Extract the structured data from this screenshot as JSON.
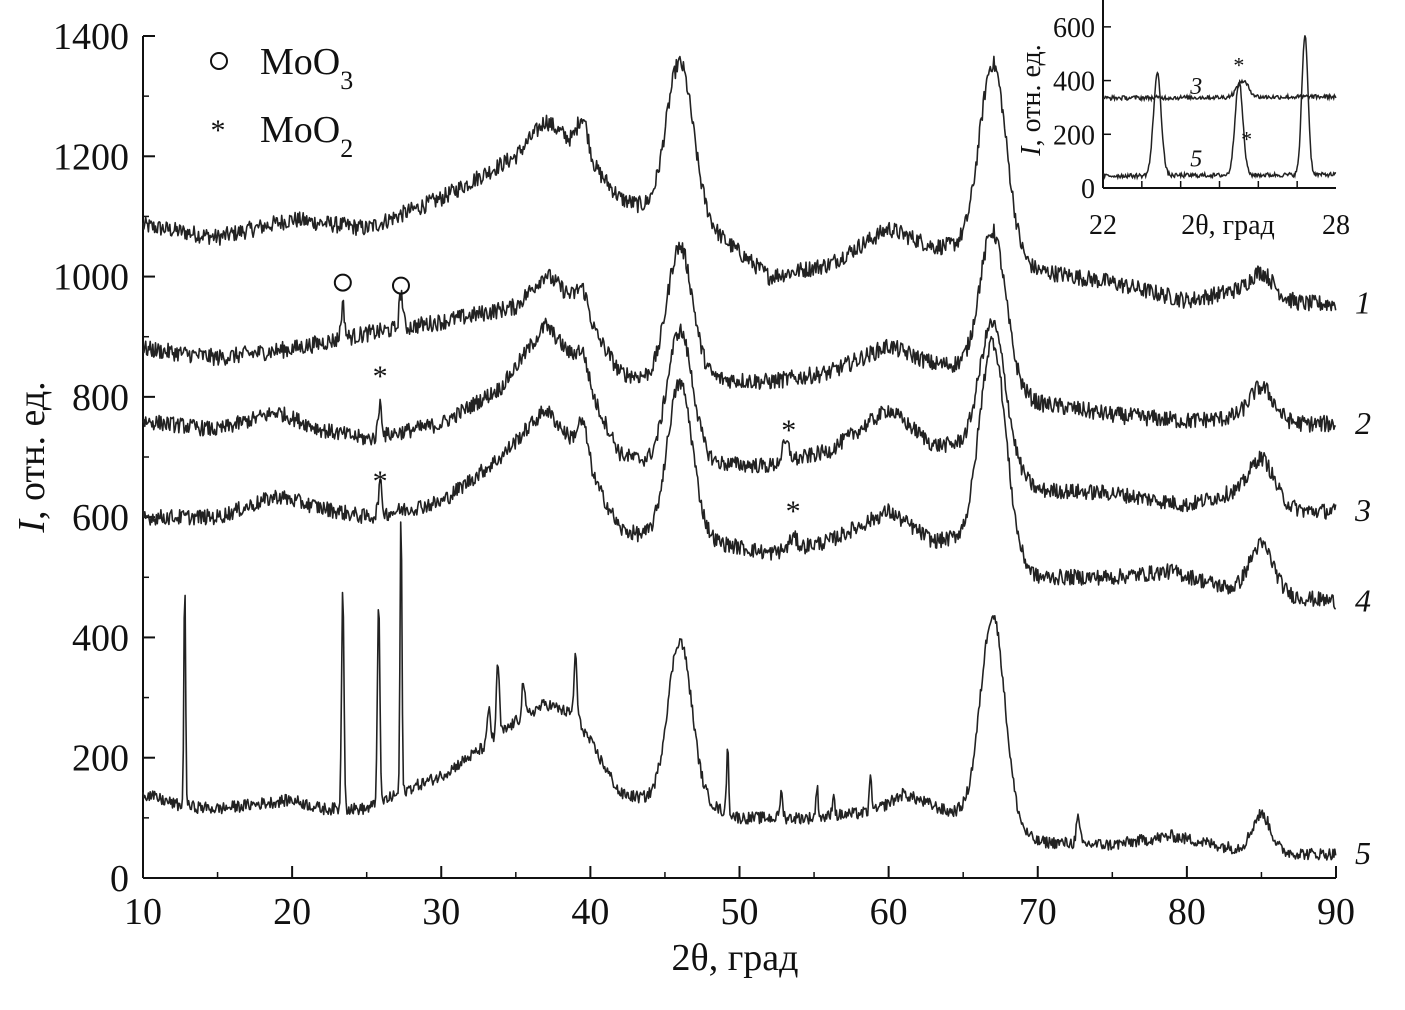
{
  "chart_data": [
    {
      "type": "line",
      "title": "",
      "xlabel": "2θ, град",
      "ylabel_italic": "I",
      "ylabel_rest": ", отн. ед.",
      "xlim": [
        10,
        90
      ],
      "ylim": [
        0,
        1400
      ],
      "xticks": [
        "10",
        "20",
        "30",
        "40",
        "50",
        "60",
        "70",
        "80",
        "90"
      ],
      "yticks": [
        "0",
        "200",
        "400",
        "600",
        "800",
        "1000",
        "1200",
        "1400"
      ],
      "grid": false,
      "legend_position": "top-left",
      "legend": [
        {
          "symbol": "○",
          "label": "MoO",
          "sub": "3"
        },
        {
          "symbol": "*",
          "label": "MoO",
          "sub": "2"
        }
      ],
      "phase_markers": [
        {
          "symbol": "○",
          "x": 23.4,
          "y": 990,
          "series": "1"
        },
        {
          "symbol": "○",
          "x": 27.3,
          "y": 985,
          "series": "1"
        },
        {
          "symbol": "*",
          "x": 25.9,
          "y": 835,
          "series": "2"
        },
        {
          "symbol": "*",
          "x": 25.9,
          "y": 660,
          "series": "3"
        },
        {
          "symbol": "*",
          "x": 53.3,
          "y": 745,
          "series": "3"
        },
        {
          "symbol": "*",
          "x": 53.6,
          "y": 610,
          "series": "4"
        }
      ],
      "series": [
        {
          "name": "1",
          "base": [
            [
              10,
              1085
            ],
            [
              15,
              1065
            ],
            [
              20,
              1095
            ],
            [
              25,
              1080
            ],
            [
              30,
              1130
            ],
            [
              35,
              1200
            ],
            [
              37,
              1260
            ],
            [
              39,
              1220
            ],
            [
              42,
              1130
            ],
            [
              44,
              1110
            ],
            [
              48,
              1080
            ],
            [
              52,
              1000
            ],
            [
              56,
              1020
            ],
            [
              60,
              1080
            ],
            [
              63,
              1050
            ],
            [
              65,
              1050
            ],
            [
              70,
              1010
            ],
            [
              75,
              990
            ],
            [
              80,
              960
            ],
            [
              83,
              975
            ],
            [
              88,
              955
            ],
            [
              90,
              955
            ]
          ],
          "peaks": [
            [
              39.5,
              60,
              0.35
            ],
            [
              46,
              260,
              0.9
            ],
            [
              67,
              320,
              0.9
            ],
            [
              85,
              40,
              0.8
            ]
          ]
        },
        {
          "name": "2",
          "base": [
            [
              10,
              880
            ],
            [
              15,
              865
            ],
            [
              20,
              880
            ],
            [
              25,
              905
            ],
            [
              30,
              925
            ],
            [
              35,
              950
            ],
            [
              37,
              1005
            ],
            [
              39,
              960
            ],
            [
              42,
              840
            ],
            [
              44,
              830
            ],
            [
              48,
              830
            ],
            [
              52,
              825
            ],
            [
              56,
              840
            ],
            [
              60,
              885
            ],
            [
              63,
              855
            ],
            [
              66,
              850
            ],
            [
              70,
              790
            ],
            [
              75,
              770
            ],
            [
              80,
              760
            ],
            [
              83,
              765
            ],
            [
              88,
              755
            ],
            [
              90,
              755
            ]
          ],
          "peaks": [
            [
              23.4,
              55,
              0.12
            ],
            [
              27.3,
              60,
              0.12
            ],
            [
              39.5,
              40,
              0.35
            ],
            [
              46,
              220,
              0.85
            ],
            [
              67,
              240,
              0.85
            ],
            [
              85,
              55,
              0.8
            ]
          ]
        },
        {
          "name": "3",
          "base": [
            [
              10,
              760
            ],
            [
              15,
              745
            ],
            [
              19,
              775
            ],
            [
              22,
              745
            ],
            [
              25,
              730
            ],
            [
              30,
              755
            ],
            [
              34,
              815
            ],
            [
              37,
              920
            ],
            [
              39,
              860
            ],
            [
              42,
              705
            ],
            [
              44,
              690
            ],
            [
              48,
              690
            ],
            [
              52,
              685
            ],
            [
              56,
              710
            ],
            [
              60,
              780
            ],
            [
              63,
              720
            ],
            [
              66,
              720
            ],
            [
              70,
              645
            ],
            [
              75,
              640
            ],
            [
              80,
              620
            ],
            [
              83,
              640
            ],
            [
              88,
              610
            ],
            [
              90,
              610
            ]
          ],
          "peaks": [
            [
              25.9,
              55,
              0.12
            ],
            [
              39.5,
              40,
              0.35
            ],
            [
              46,
              220,
              0.85
            ],
            [
              53.1,
              30,
              0.25
            ],
            [
              67,
              220,
              0.85
            ],
            [
              85,
              70,
              0.8
            ]
          ]
        },
        {
          "name": "4",
          "base": [
            [
              10,
              600
            ],
            [
              15,
              600
            ],
            [
              19,
              635
            ],
            [
              22,
              615
            ],
            [
              25,
              600
            ],
            [
              30,
              625
            ],
            [
              34,
              700
            ],
            [
              37,
              780
            ],
            [
              39,
              720
            ],
            [
              42,
              580
            ],
            [
              44,
              565
            ],
            [
              48,
              560
            ],
            [
              52,
              540
            ],
            [
              56,
              560
            ],
            [
              60,
              610
            ],
            [
              63,
              560
            ],
            [
              66,
              570
            ],
            [
              70,
              500
            ],
            [
              75,
              500
            ],
            [
              79,
              510
            ],
            [
              83,
              480
            ],
            [
              88,
              465
            ],
            [
              90,
              460
            ]
          ],
          "peaks": [
            [
              25.9,
              50,
              0.12
            ],
            [
              39.5,
              60,
              0.35
            ],
            [
              46,
              260,
              0.85
            ],
            [
              53.6,
              18,
              0.25
            ],
            [
              67,
              340,
              0.85
            ],
            [
              85,
              80,
              0.8
            ]
          ]
        },
        {
          "name": "5",
          "base": [
            [
              10,
              140
            ],
            [
              12.5,
              120
            ],
            [
              15,
              115
            ],
            [
              20,
              130
            ],
            [
              22,
              115
            ],
            [
              25,
              115
            ],
            [
              28,
              150
            ],
            [
              30,
              170
            ],
            [
              33,
              220
            ],
            [
              35,
              260
            ],
            [
              37,
              290
            ],
            [
              39,
              270
            ],
            [
              42,
              140
            ],
            [
              44,
              130
            ],
            [
              48,
              120
            ],
            [
              50,
              100
            ],
            [
              55,
              100
            ],
            [
              59,
              110
            ],
            [
              61,
              140
            ],
            [
              64,
              110
            ],
            [
              66,
              110
            ],
            [
              70,
              60
            ],
            [
              75,
              55
            ],
            [
              79,
              70
            ],
            [
              83,
              50
            ],
            [
              88,
              40
            ],
            [
              90,
              40
            ]
          ],
          "peaks": [
            [
              12.8,
              380,
              0.06
            ],
            [
              23.4,
              370,
              0.08
            ],
            [
              25.8,
              340,
              0.08
            ],
            [
              27.3,
              480,
              0.06
            ],
            [
              33.2,
              60,
              0.1
            ],
            [
              33.8,
              120,
              0.1
            ],
            [
              35.5,
              60,
              0.1
            ],
            [
              39.0,
              100,
              0.1
            ],
            [
              46,
              270,
              0.8
            ],
            [
              49.2,
              110,
              0.07
            ],
            [
              52.8,
              40,
              0.1
            ],
            [
              55.2,
              50,
              0.08
            ],
            [
              56.3,
              40,
              0.08
            ],
            [
              58.8,
              60,
              0.08
            ],
            [
              67,
              340,
              0.8
            ],
            [
              72.7,
              40,
              0.12
            ],
            [
              85,
              60,
              0.6
            ]
          ]
        }
      ]
    },
    {
      "type": "line",
      "title": "",
      "xlabel": "2θ, град",
      "ylabel_italic": "I",
      "ylabel_rest": ", отн. ед.",
      "xlim": [
        22,
        28
      ],
      "ylim": [
        0,
        700
      ],
      "xticks": [
        "22",
        "28"
      ],
      "yticks": [
        "0",
        "200",
        "400",
        "600"
      ],
      "grid": false,
      "phase_markers": [
        {
          "symbol": "*",
          "x": 25.5,
          "y": 460,
          "series": "3"
        },
        {
          "symbol": "*",
          "x": 25.7,
          "y": 185,
          "series": "5"
        }
      ],
      "series": [
        {
          "name": "3",
          "base": [
            [
              22,
              335
            ],
            [
              28,
              340
            ]
          ],
          "peaks": [
            [
              25.6,
              60,
              0.15
            ]
          ]
        },
        {
          "name": "5",
          "base": [
            [
              22,
              45
            ],
            [
              28,
              50
            ]
          ],
          "peaks": [
            [
              23.4,
              380,
              0.1
            ],
            [
              25.5,
              350,
              0.1
            ],
            [
              27.2,
              520,
              0.08
            ]
          ]
        }
      ]
    }
  ]
}
